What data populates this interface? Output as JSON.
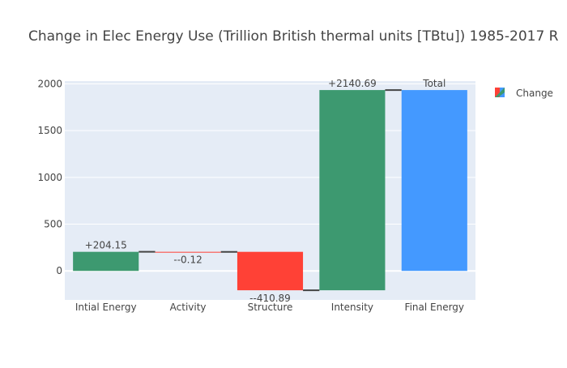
{
  "chart_data": {
    "type": "waterfall",
    "title": "Change in Elec Energy Use (Trillion British thermal units [TBtu]) 1985-2017 R",
    "xlabel": "",
    "ylabel": "",
    "ylim": [
      -310,
      2030
    ],
    "y_ticks": [
      0,
      500,
      1000,
      1500,
      2000
    ],
    "y_tick_labels": [
      "0",
      "500",
      "1000",
      "1500",
      "2000"
    ],
    "grid": true,
    "legend": {
      "position": "right",
      "entries": [
        "Change"
      ]
    },
    "colors": {
      "increase": "#3d9970",
      "decrease": "#ff4136",
      "total": "#4499ff",
      "plot_bg": "#e5ecf6",
      "connector": "#444444",
      "text": "#444444",
      "title": "#444444"
    },
    "steps": [
      {
        "category": "Intial Energy",
        "measure": "relative",
        "value": 204.15,
        "label": "+204.15"
      },
      {
        "category": "Activity",
        "measure": "relative",
        "value": -0.12,
        "label": "--0.12"
      },
      {
        "category": "Structure",
        "measure": "relative",
        "value": -410.89,
        "label": "--410.89"
      },
      {
        "category": "Intensity",
        "measure": "relative",
        "value": 2140.69,
        "label": "+2140.69"
      },
      {
        "category": "Final Energy",
        "measure": "total",
        "value": 1933.83,
        "label": "Total"
      }
    ]
  }
}
